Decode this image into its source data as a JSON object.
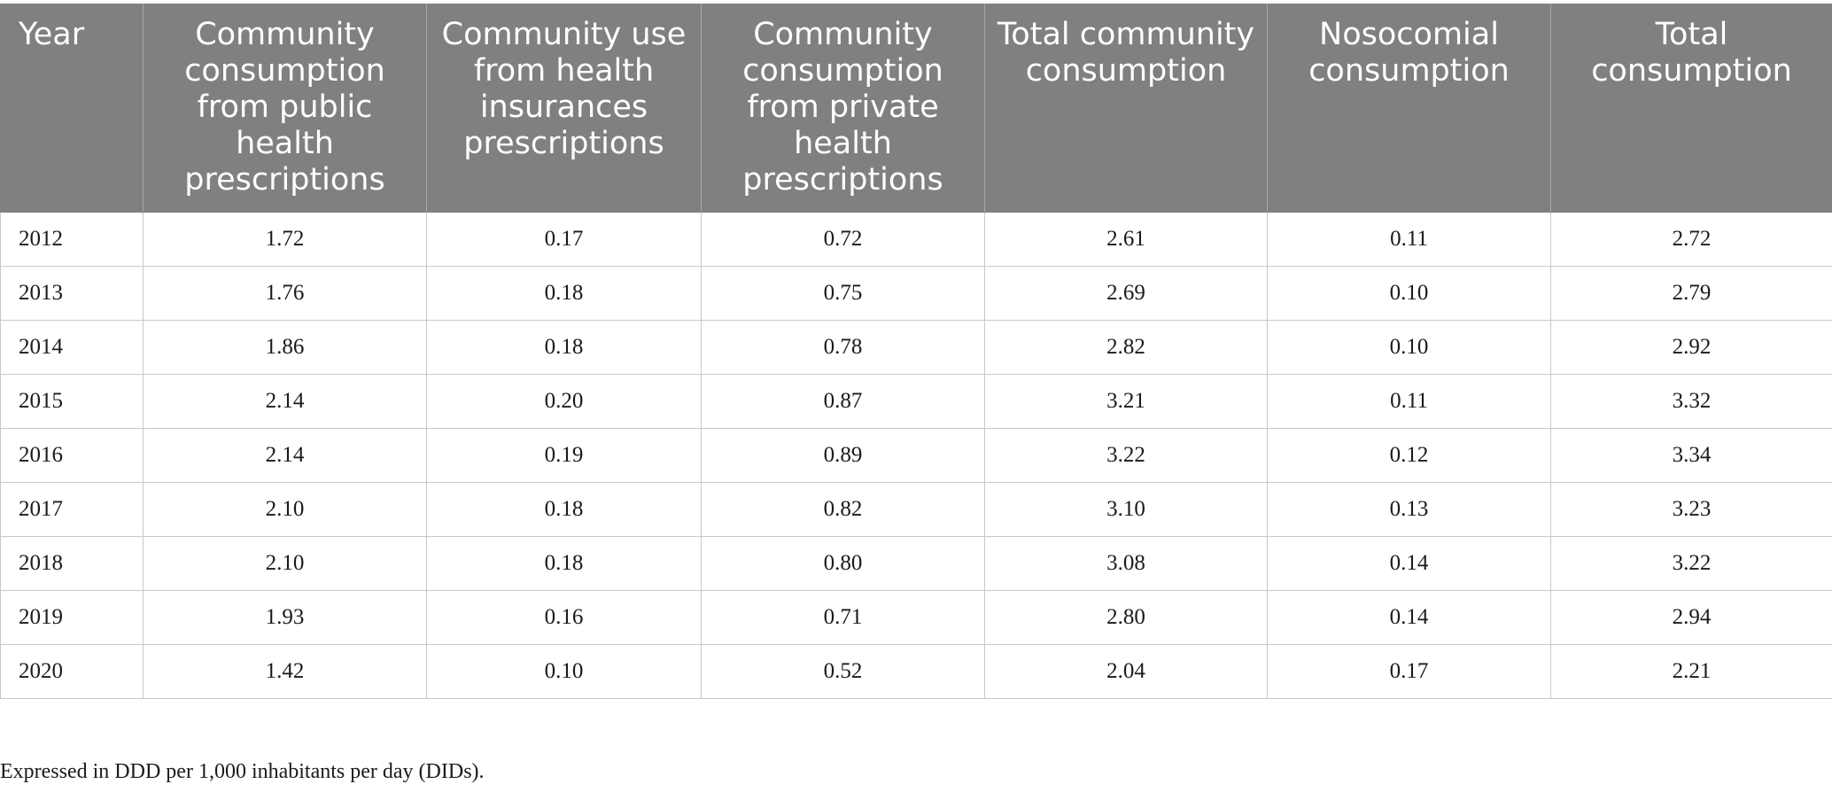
{
  "table": {
    "headers": [
      "Year",
      "Community consumption from public health prescriptions",
      "Community use from health insurances prescriptions",
      "Community consumption from private health prescriptions",
      "Total community consumption",
      "Nosocomial consumption",
      "Total consumption"
    ],
    "rows": [
      [
        "2012",
        "1.72",
        "0.17",
        "0.72",
        "2.61",
        "0.11",
        "2.72"
      ],
      [
        "2013",
        "1.76",
        "0.18",
        "0.75",
        "2.69",
        "0.10",
        "2.79"
      ],
      [
        "2014",
        "1.86",
        "0.18",
        "0.78",
        "2.82",
        "0.10",
        "2.92"
      ],
      [
        "2015",
        "2.14",
        "0.20",
        "0.87",
        "3.21",
        "0.11",
        "3.32"
      ],
      [
        "2016",
        "2.14",
        "0.19",
        "0.89",
        "3.22",
        "0.12",
        "3.34"
      ],
      [
        "2017",
        "2.10",
        "0.18",
        "0.82",
        "3.10",
        "0.13",
        "3.23"
      ],
      [
        "2018",
        "2.10",
        "0.18",
        "0.80",
        "3.08",
        "0.14",
        "3.22"
      ],
      [
        "2019",
        "1.93",
        "0.16",
        "0.71",
        "2.80",
        "0.14",
        "2.94"
      ],
      [
        "2020",
        "1.42",
        "0.10",
        "0.52",
        "2.04",
        "0.17",
        "2.21"
      ]
    ]
  },
  "footnote": "Expressed in DDD per 1,000 inhabitants per day (DIDs).",
  "colors": {
    "header_background": "#808080",
    "header_text": "#ffffff",
    "grid_line": "#c8c8c8"
  }
}
